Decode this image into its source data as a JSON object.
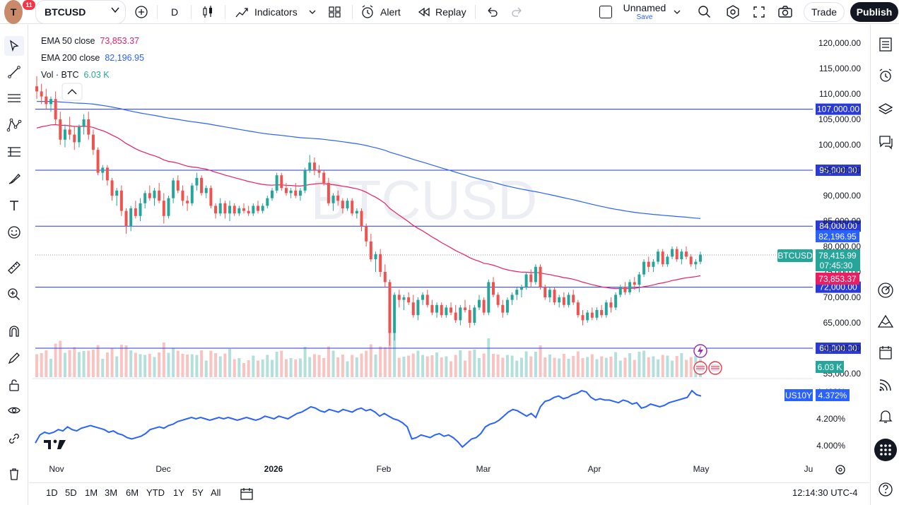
{
  "topbar": {
    "avatar_letter": "T",
    "notifications": "11",
    "symbol": "BTCUSD",
    "interval": "D",
    "indicators_label": "Indicators",
    "alert_label": "Alert",
    "replay_label": "Replay",
    "layout_name": "Unnamed",
    "save_label": "Save",
    "trade_label": "Trade",
    "publish_label": "Publish"
  },
  "legend": {
    "ema50_label": "EMA 50 close",
    "ema50_value": "73,853.37",
    "ema200_label": "EMA 200 close",
    "ema200_value": "82,196.95",
    "vol_label": "Vol · BTC",
    "vol_value": "6.03 K"
  },
  "watermark": "BTCUSD",
  "colors": {
    "up": "#26a69a",
    "down": "#ef5350",
    "ema50": "#e91e63",
    "ema200": "#2962ff",
    "hline": "#2a3ad6",
    "accent": "#2962ff"
  },
  "bottombar": {
    "ranges": [
      "1D",
      "5D",
      "1M",
      "3M",
      "6M",
      "YTD",
      "1Y",
      "5Y",
      "All"
    ],
    "clock": "12:14:30 UTC-4"
  },
  "chart_data": {
    "type": "candlestick",
    "main": {
      "y_ticks": [
        "120,000.00",
        "115,000.00",
        "110,000.00",
        "105,000.00",
        "100,000.00",
        "95,000.00",
        "90,000.00",
        "85,000.00",
        "80,000.00",
        "75,000.00",
        "70,000.00",
        "65,000.00",
        "60,000.00",
        "55,000.00"
      ],
      "ylim": [
        55000,
        120000
      ],
      "x_ticks": [
        "Nov",
        "Dec",
        "2026",
        "Feb",
        "Mar",
        "Apr",
        "May",
        "Ju"
      ],
      "horizontal_lines": [
        "107,000.00",
        "95,000.00",
        "84,000.00",
        "72,000.00",
        "60,000.00"
      ],
      "price_label": {
        "symbol": "BTCUSD",
        "price": "78,415.99",
        "countdown": "07:45:30"
      },
      "ema200_label": "82,196.95",
      "ema50_label": "73,853.37",
      "volume_label": "6.03 K",
      "candles_ohlc": [
        [
          111500,
          113500,
          109000,
          110500
        ],
        [
          110500,
          112000,
          108000,
          109500
        ],
        [
          109500,
          111000,
          107000,
          108000
        ],
        [
          108000,
          109500,
          106500,
          109000
        ],
        [
          109000,
          110500,
          104000,
          105000
        ],
        [
          105000,
          106500,
          100000,
          101000
        ],
        [
          101000,
          104000,
          99500,
          103000
        ],
        [
          103000,
          105500,
          101000,
          102000
        ],
        [
          102000,
          103500,
          99000,
          100500
        ],
        [
          100500,
          104000,
          99500,
          103500
        ],
        [
          103500,
          106000,
          102000,
          105000
        ],
        [
          105000,
          106500,
          101000,
          102000
        ],
        [
          102000,
          103000,
          98000,
          99000
        ],
        [
          99000,
          99500,
          94000,
          94500
        ],
        [
          94500,
          96000,
          93000,
          95500
        ],
        [
          95500,
          96000,
          92000,
          93000
        ],
        [
          93000,
          93500,
          89000,
          90000
        ],
        [
          90000,
          91500,
          88000,
          91000
        ],
        [
          91000,
          92000,
          86000,
          87000
        ],
        [
          87000,
          87500,
          82500,
          84000
        ],
        [
          84000,
          88000,
          83000,
          87500
        ],
        [
          87500,
          89000,
          85500,
          86000
        ],
        [
          86000,
          89500,
          85000,
          88500
        ],
        [
          88500,
          91000,
          87500,
          90500
        ],
        [
          90500,
          92000,
          89000,
          89500
        ],
        [
          89500,
          91500,
          88000,
          91000
        ],
        [
          91000,
          92500,
          88500,
          89000
        ],
        [
          89000,
          90500,
          84500,
          86000
        ],
        [
          86000,
          90000,
          85500,
          89500
        ],
        [
          89500,
          93500,
          88500,
          93000
        ],
        [
          93000,
          94000,
          90500,
          91000
        ],
        [
          91000,
          92000,
          88000,
          89000
        ],
        [
          89000,
          90000,
          87000,
          88500
        ],
        [
          88500,
          92500,
          88000,
          92000
        ],
        [
          92000,
          94500,
          91000,
          93500
        ],
        [
          93500,
          94000,
          90000,
          90500
        ],
        [
          90500,
          92000,
          89500,
          91500
        ],
        [
          91500,
          92000,
          87500,
          88000
        ],
        [
          88000,
          88500,
          85500,
          86500
        ],
        [
          86500,
          89500,
          86000,
          88500
        ],
        [
          88500,
          89000,
          85500,
          86500
        ],
        [
          86500,
          89000,
          85000,
          88000
        ],
        [
          88000,
          88500,
          86000,
          86500
        ],
        [
          86500,
          88000,
          86000,
          87500
        ],
        [
          87500,
          88500,
          86500,
          87000
        ],
        [
          87000,
          88000,
          86000,
          86500
        ],
        [
          86500,
          88500,
          86000,
          88000
        ],
        [
          88000,
          89000,
          86500,
          87000
        ],
        [
          87000,
          88500,
          86500,
          88000
        ],
        [
          88000,
          90000,
          87500,
          89500
        ],
        [
          89500,
          91500,
          89000,
          91000
        ],
        [
          91000,
          94500,
          90500,
          94000
        ],
        [
          94000,
          94500,
          91000,
          91500
        ],
        [
          91500,
          92500,
          90000,
          90500
        ],
        [
          90500,
          91500,
          89500,
          91000
        ],
        [
          91000,
          92500,
          89500,
          90000
        ],
        [
          90000,
          91500,
          89000,
          91000
        ],
        [
          91000,
          95500,
          90500,
          95000
        ],
        [
          95000,
          98000,
          94500,
          96500
        ],
        [
          96500,
          97500,
          94000,
          95000
        ],
        [
          95000,
          96000,
          93500,
          94500
        ],
        [
          94500,
          95000,
          92000,
          92500
        ],
        [
          92500,
          93500,
          88000,
          88500
        ],
        [
          88500,
          90500,
          87000,
          90000
        ],
        [
          90000,
          91000,
          88000,
          89000
        ],
        [
          89000,
          89500,
          86500,
          87500
        ],
        [
          87500,
          89500,
          87000,
          89000
        ],
        [
          89000,
          89500,
          86000,
          86500
        ],
        [
          86500,
          87500,
          85500,
          87000
        ],
        [
          87000,
          87500,
          83000,
          84000
        ],
        [
          84000,
          84500,
          80000,
          81000
        ],
        [
          81000,
          82500,
          77000,
          77500
        ],
        [
          77500,
          79000,
          75000,
          78500
        ],
        [
          78500,
          79500,
          74000,
          75000
        ],
        [
          75000,
          76500,
          72000,
          73000
        ],
        [
          73000,
          73500,
          60500,
          63000
        ],
        [
          63000,
          71000,
          61500,
          70500
        ],
        [
          70500,
          71500,
          68000,
          69500
        ],
        [
          69500,
          70500,
          67500,
          70000
        ],
        [
          70000,
          71000,
          68500,
          69000
        ],
        [
          69000,
          70500,
          66000,
          66500
        ],
        [
          66500,
          70000,
          65500,
          69500
        ],
        [
          69500,
          71000,
          68500,
          70500
        ],
        [
          70500,
          71500,
          68000,
          68500
        ],
        [
          68500,
          69500,
          66500,
          67000
        ],
        [
          67000,
          69000,
          66000,
          68500
        ],
        [
          68500,
          69000,
          66000,
          66500
        ],
        [
          66500,
          68500,
          66000,
          68000
        ],
        [
          68000,
          69000,
          66500,
          67000
        ],
        [
          67000,
          68500,
          65000,
          65500
        ],
        [
          65500,
          68500,
          64500,
          68000
        ],
        [
          68000,
          69500,
          67000,
          67500
        ],
        [
          67500,
          68500,
          64000,
          65000
        ],
        [
          65000,
          68500,
          64500,
          68000
        ],
        [
          68000,
          70500,
          67500,
          69500
        ],
        [
          69500,
          70000,
          66500,
          67000
        ],
        [
          67000,
          73500,
          66500,
          73000
        ],
        [
          73000,
          74000,
          70000,
          70500
        ],
        [
          70500,
          71000,
          68000,
          68500
        ],
        [
          68500,
          69500,
          66000,
          67000
        ],
        [
          67000,
          70000,
          66500,
          69500
        ],
        [
          69500,
          71000,
          68500,
          70500
        ],
        [
          70500,
          72000,
          69500,
          71500
        ],
        [
          71500,
          72500,
          70000,
          72000
        ],
        [
          72000,
          75000,
          71500,
          74500
        ],
        [
          74500,
          75500,
          72000,
          73000
        ],
        [
          73000,
          76500,
          72500,
          76000
        ],
        [
          76000,
          76500,
          71500,
          72000
        ],
        [
          72000,
          72500,
          69500,
          70000
        ],
        [
          70000,
          72000,
          69000,
          71500
        ],
        [
          71500,
          72000,
          68500,
          69000
        ],
        [
          69000,
          70500,
          68000,
          70000
        ],
        [
          70000,
          71000,
          68000,
          68500
        ],
        [
          68500,
          71000,
          68000,
          70500
        ],
        [
          70500,
          71500,
          68500,
          69000
        ],
        [
          69000,
          69500,
          66000,
          66500
        ],
        [
          66500,
          67500,
          64500,
          65500
        ],
        [
          65500,
          67500,
          65000,
          67000
        ],
        [
          67000,
          68000,
          65500,
          66000
        ],
        [
          66000,
          68000,
          65500,
          67500
        ],
        [
          67500,
          68500,
          66000,
          66500
        ],
        [
          66500,
          69500,
          66000,
          69000
        ],
        [
          69000,
          70000,
          67000,
          68000
        ],
        [
          68000,
          71000,
          67500,
          70500
        ],
        [
          70500,
          72500,
          70000,
          72000
        ],
        [
          72000,
          73000,
          70500,
          71000
        ],
        [
          71000,
          73500,
          70500,
          73000
        ],
        [
          73000,
          74000,
          71500,
          72500
        ],
        [
          72500,
          75000,
          71000,
          74500
        ],
        [
          74500,
          77500,
          74000,
          77000
        ],
        [
          77000,
          78000,
          75000,
          76000
        ],
        [
          76000,
          77500,
          75000,
          77000
        ],
        [
          77000,
          79500,
          76500,
          79000
        ],
        [
          79000,
          79500,
          76000,
          76500
        ],
        [
          76500,
          78500,
          76000,
          78000
        ],
        [
          78000,
          80000,
          77500,
          79500
        ],
        [
          79500,
          80000,
          77000,
          77500
        ],
        [
          77500,
          79500,
          76500,
          79000
        ],
        [
          79000,
          80000,
          77500,
          78000
        ],
        [
          78000,
          78500,
          76000,
          76500
        ],
        [
          76500,
          77500,
          75500,
          77000
        ],
        [
          77000,
          79000,
          76500,
          78416
        ]
      ]
    },
    "lower": {
      "series_name": "US10Y",
      "value_label": "4.372%",
      "y_ticks": [
        "4.400%",
        "4.200%",
        "4.000%"
      ],
      "ylim": [
        3.94,
        4.44
      ],
      "values": [
        4.02,
        4.08,
        4.1,
        4.09,
        4.1,
        4.12,
        4.11,
        4.14,
        4.12,
        4.11,
        4.13,
        4.14,
        4.15,
        4.14,
        4.13,
        4.12,
        4.1,
        4.11,
        4.09,
        4.08,
        4.06,
        4.05,
        4.06,
        4.07,
        4.09,
        4.12,
        4.13,
        4.14,
        4.13,
        4.15,
        4.16,
        4.18,
        4.19,
        4.2,
        4.21,
        4.2,
        4.21,
        4.2,
        4.19,
        4.2,
        4.21,
        4.2,
        4.21,
        4.2,
        4.19,
        4.2,
        4.21,
        4.2,
        4.19,
        4.2,
        4.22,
        4.21,
        4.2,
        4.22,
        4.21,
        4.2,
        4.22,
        4.24,
        4.25,
        4.27,
        4.29,
        4.28,
        4.26,
        4.25,
        4.27,
        4.26,
        4.25,
        4.27,
        4.26,
        4.25,
        4.27,
        4.28,
        4.26,
        4.27,
        4.25,
        4.22,
        4.24,
        4.22,
        4.2,
        4.19,
        4.17,
        4.14,
        4.05,
        4.06,
        4.08,
        4.07,
        4.06,
        4.08,
        4.09,
        4.07,
        4.08,
        4.06,
        4.03,
        3.99,
        4.02,
        4.05,
        4.06,
        4.09,
        4.14,
        4.16,
        4.17,
        4.19,
        4.22,
        4.25,
        4.27,
        4.26,
        4.24,
        4.22,
        4.24,
        4.21,
        4.29,
        4.33,
        4.34,
        4.36,
        4.37,
        4.35,
        4.36,
        4.38,
        4.39,
        4.41,
        4.4,
        4.36,
        4.34,
        4.35,
        4.34,
        4.34,
        4.33,
        4.32,
        4.34,
        4.33,
        4.31,
        4.32,
        4.28,
        4.29,
        4.31,
        4.3,
        4.29,
        4.3,
        4.32,
        4.33,
        4.34,
        4.35,
        4.36,
        4.41,
        4.38,
        4.37
      ]
    }
  }
}
